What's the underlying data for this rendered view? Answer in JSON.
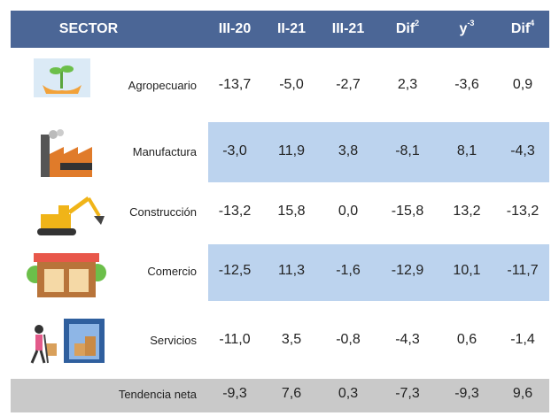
{
  "table": {
    "header": [
      {
        "text": "SECTOR"
      },
      {
        "text": "III-20"
      },
      {
        "text": "II-21"
      },
      {
        "text": "III-21"
      },
      {
        "text": "Dif",
        "sup": "2"
      },
      {
        "text": "y",
        "sup": "-3"
      },
      {
        "text": "Dif",
        "sup": "4"
      }
    ],
    "rows": [
      [
        "Agropecuario",
        "-13,7",
        "-5,0",
        "-2,7",
        "2,3",
        "-3,6",
        "0,9"
      ],
      [
        "Manufactura",
        "-3,0",
        "11,9",
        "3,8",
        "-8,1",
        "8,1",
        "-4,3"
      ],
      [
        "Construcción",
        "-13,2",
        "15,8",
        "0,0",
        "-15,8",
        "13,2",
        "-13,2"
      ],
      [
        "Comercio",
        "-12,5",
        "11,3",
        "-1,6",
        "-12,9",
        "10,1",
        "-11,7"
      ],
      [
        "Servicios",
        "-11,0",
        "3,5",
        "-0,8",
        "-4,3",
        "0,6",
        "-1,4"
      ],
      [
        "Tendencia neta",
        "-9,3",
        "7,6",
        "0,3",
        "-7,3",
        "-9,3",
        "9,6"
      ]
    ]
  }
}
